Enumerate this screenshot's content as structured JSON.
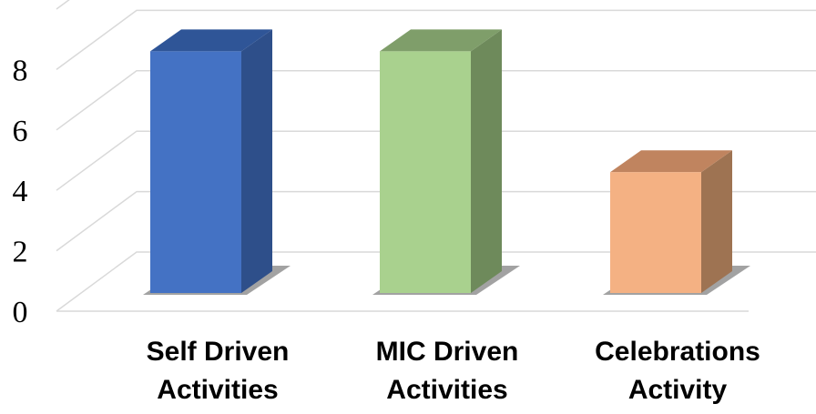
{
  "chart_data": {
    "type": "bar",
    "style": "3d-column",
    "categories": [
      [
        "Self Driven",
        "Activities"
      ],
      [
        "MIC Driven",
        "Activities"
      ],
      [
        "Celebrations",
        "Activity"
      ]
    ],
    "values": [
      8,
      8,
      4
    ],
    "ylim": [
      0,
      10
    ],
    "yticks": [
      "0",
      "2",
      "4",
      "6",
      "8"
    ],
    "grid": true,
    "legend": "none",
    "colors": {
      "fronts": [
        "#4472c4",
        "#a9d18e",
        "#f4b183"
      ],
      "sides": [
        "#2e4f8a",
        "#6e8a5b",
        "#9e7352"
      ],
      "tops": [
        "#2f5597",
        "#7f9e6a",
        "#c0845f"
      ],
      "grid": "#d9d9d9"
    }
  }
}
